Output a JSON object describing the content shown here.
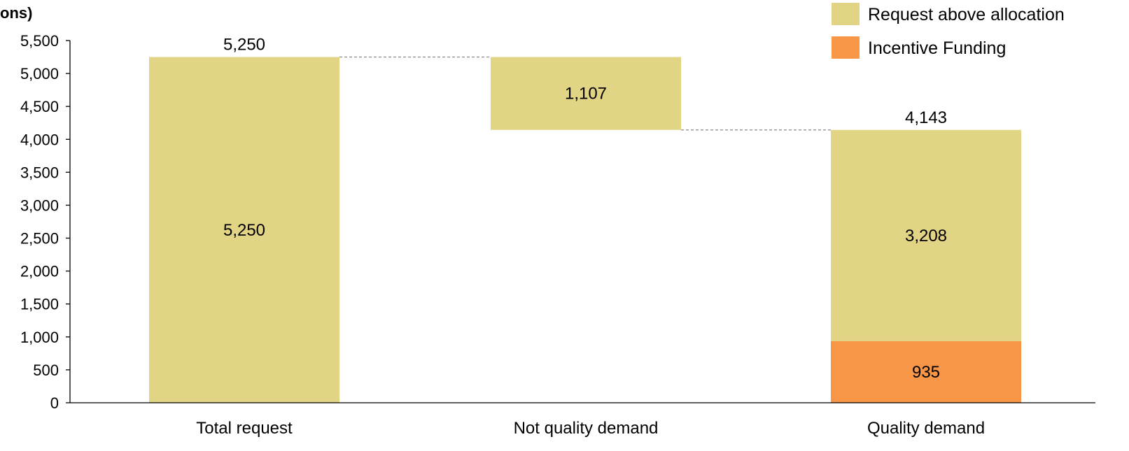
{
  "chart_data": {
    "type": "bar",
    "subtype": "waterfall",
    "title": "",
    "ylabel": "ons)",
    "xlabel": "",
    "ylim": [
      0,
      5500
    ],
    "yticks": [
      0,
      500,
      1000,
      1500,
      2000,
      2500,
      3000,
      3500,
      4000,
      4500,
      5000,
      5500
    ],
    "ytick_labels": [
      "0",
      "500",
      "1,000",
      "1,500",
      "2,000",
      "2,500",
      "3,000",
      "3,500",
      "4,000",
      "4,500",
      "5,000",
      "5,500"
    ],
    "grid": false,
    "legend_position": "top-right",
    "categories": [
      "Total request",
      "Not quality demand",
      "Quality demand"
    ],
    "series": [
      {
        "name": "Request above allocation",
        "color": "#e2d485",
        "segments": [
          {
            "category": "Total request",
            "start": 0,
            "end": 5250,
            "label": "5,250"
          },
          {
            "category": "Not quality demand",
            "start": 4143,
            "end": 5250,
            "label": "1,107"
          },
          {
            "category": "Quality demand",
            "start": 935,
            "end": 4143,
            "label": "3,208"
          }
        ]
      },
      {
        "name": "Incentive Funding",
        "color": "#f79646",
        "segments": [
          {
            "category": "Quality demand",
            "start": 0,
            "end": 935,
            "label": "935"
          }
        ]
      }
    ],
    "totals": [
      {
        "category": "Total request",
        "value": 5250,
        "label": "5,250"
      },
      {
        "category": "Quality demand",
        "value": 4143,
        "label": "4,143"
      }
    ],
    "connectors": [
      {
        "from": "Total request",
        "to": "Not quality demand",
        "value": 5250
      },
      {
        "from": "Not quality demand",
        "to": "Quality demand",
        "value": 4143
      }
    ],
    "axis_color": "#000000",
    "connector_color": "#7f7f7f"
  }
}
